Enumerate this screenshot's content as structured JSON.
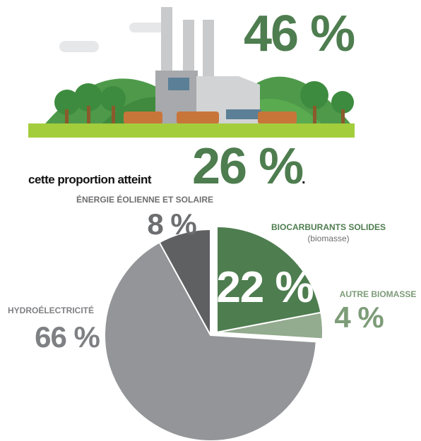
{
  "headline": "46 %",
  "sentence": {
    "text": "cette proportion atteint",
    "value": "26 %",
    "end": "."
  },
  "chart_data": {
    "type": "pie",
    "categories": [
      "BIOCARBURANTS SOLIDES",
      "AUTRE BIOMASSE",
      "HYDROÉLECTRICITÉ",
      "ÉNERGIE ÉOLIENNE ET SOLAIRE"
    ],
    "category_note": "(biomasse)",
    "values": [
      22,
      4,
      66,
      8
    ],
    "value_labels": [
      "22 %",
      "4 %",
      "66 %",
      "8 %"
    ],
    "colors": [
      "#4e7d4f",
      "#93ab8e",
      "#939598",
      "#5f6062"
    ]
  }
}
